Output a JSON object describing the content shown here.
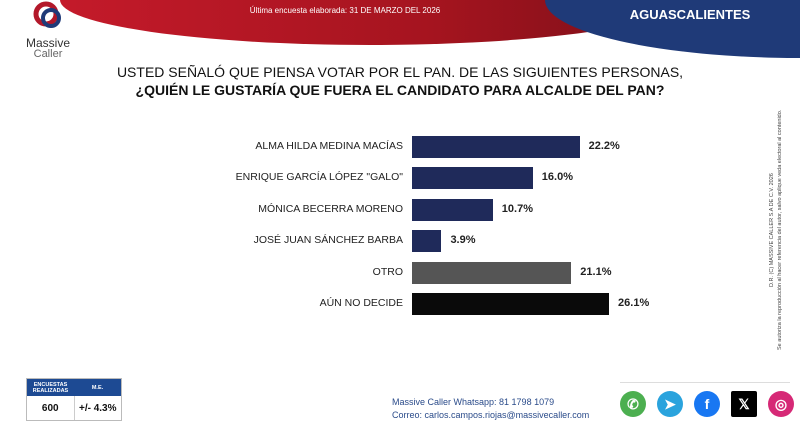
{
  "header": {
    "brand_line1": "Massive",
    "brand_line2": "Caller",
    "date_text": "Última encuesta elaborada: 31 DE MARZO DEL 2026",
    "region": "AGUASCALIENTES"
  },
  "question": {
    "line1": "USTED SEÑALÓ QUE PIENSA VOTAR POR EL PAN. DE LAS SIGUIENTES PERSONAS,",
    "line2": "¿QUIÉN LE GUSTARÍA QUE FUERA EL CANDIDATO PARA ALCALDE DEL PAN?"
  },
  "chart_data": {
    "type": "bar",
    "orientation": "horizontal",
    "categories": [
      "ALMA HILDA MEDINA MACÍAS",
      "ENRIQUE GARCÍA LÓPEZ \"GALO\"",
      "MÓNICA BECERRA MORENO",
      "JOSÉ JUAN SÁNCHEZ BARBA",
      "OTRO",
      "AÚN NO DECIDE"
    ],
    "values": [
      22.2,
      16.0,
      10.7,
      3.9,
      21.1,
      26.1
    ],
    "labels": [
      "22.2%",
      "16.0%",
      "10.7%",
      "3.9%",
      "21.1%",
      "26.1%"
    ],
    "colors": [
      "#1f2a5a",
      "#1f2a5a",
      "#1f2a5a",
      "#1f2a5a",
      "#555555",
      "#0a0a0a"
    ],
    "grid": false
  },
  "copyright": {
    "line1": "D.R. (C) MASSIVE CALLER S.A DE C.V. 2026",
    "line2": "Se autoriza la reproducción al hacer referencia del autor, salvo aplique veda electoral al contenido."
  },
  "stats": {
    "h1": "ENCUESTAS REALIZADAS",
    "h2": "M.E.",
    "v1": "600",
    "v2": "+/- 4.3%"
  },
  "contact": {
    "whatsapp": "Massive Caller Whatsapp: 81 1798 1079",
    "email": "Correo: carlos.campos.riojas@massivecaller.com"
  },
  "social": [
    {
      "icon": "whatsapp-icon",
      "color": "#4caf50",
      "glyph": "✆"
    },
    {
      "icon": "telegram-icon",
      "color": "#2aa3dd",
      "glyph": "➤"
    },
    {
      "icon": "facebook-icon",
      "color": "#1877f2",
      "glyph": "f"
    },
    {
      "icon": "x-icon",
      "color": "#000000",
      "glyph": "𝕏"
    },
    {
      "icon": "instagram-icon",
      "color": "#d62976",
      "glyph": "◎"
    }
  ]
}
